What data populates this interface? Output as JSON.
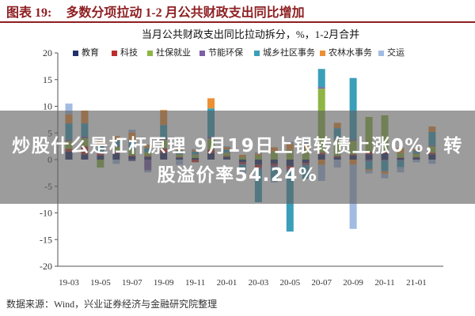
{
  "header": {
    "figure_label": "图表 19:",
    "title": "多数分项拉动 1-2 月公共财政支出同比增加",
    "accent_color": "#8E1F22"
  },
  "chart_data": {
    "type": "bar",
    "stacked": true,
    "title": "当月公共财政支出同比拉动拆分，%，1-2月合并",
    "categories": [
      "19-03",
      "",
      "19-05",
      "",
      "19-07",
      "",
      "19-09",
      "",
      "19-11",
      "",
      "20-01",
      "",
      "20-03",
      "",
      "20-05",
      "",
      "20-07",
      "",
      "20-09",
      "",
      "20-11",
      "",
      "21-01",
      ""
    ],
    "yticks": [
      20,
      15,
      10,
      5,
      0,
      -5,
      -10,
      -15,
      -20
    ],
    "ylim": [
      -20,
      20
    ],
    "grid": false,
    "legend": "top",
    "series": [
      {
        "name": "教育",
        "color": "#22306B",
        "values": [
          1.5,
          1.0,
          0.8,
          1.2,
          0.6,
          0.5,
          1.3,
          0.4,
          0.3,
          1.2,
          0.5,
          -0.5,
          -1.0,
          -0.8,
          -1.2,
          -0.6,
          1.0,
          0.5,
          0.8,
          1.0,
          1.2,
          0.3,
          0.4,
          1.0
        ]
      },
      {
        "name": "科技",
        "color": "#BE2E2C",
        "values": [
          0.5,
          1.5,
          0.3,
          0.4,
          0.2,
          0.2,
          0.8,
          0.1,
          -0.5,
          0.7,
          0.2,
          -0.3,
          -0.5,
          -0.3,
          -0.5,
          -0.2,
          0.3,
          0.2,
          0.2,
          0.5,
          0.3,
          0.1,
          0.1,
          0.3
        ]
      },
      {
        "name": "社保就业",
        "color": "#8FB545",
        "values": [
          1.5,
          1.5,
          -1.5,
          0.8,
          1.2,
          0.7,
          1.6,
          0.5,
          0.6,
          2.0,
          0.6,
          0.5,
          0.8,
          1.5,
          1.8,
          2.0,
          12.0,
          3.0,
          2.5,
          6.5,
          6.8,
          0.8,
          0.6,
          1.2
        ]
      },
      {
        "name": "节能环保",
        "color": "#7C5FA5",
        "values": [
          0.3,
          0.3,
          0.2,
          0.2,
          -0.3,
          -2.0,
          0.3,
          0.1,
          0.1,
          0.4,
          0.1,
          -0.2,
          -0.4,
          -0.3,
          -0.5,
          -0.3,
          0.3,
          0.2,
          0.3,
          -0.3,
          -0.2,
          -0.2,
          0.1,
          0.2
        ]
      },
      {
        "name": "城乡社区事务",
        "color": "#3A9FB8",
        "values": [
          3.0,
          2.5,
          1.5,
          1.0,
          1.6,
          0.8,
          2.5,
          0.6,
          0.5,
          5.3,
          0.5,
          -1.0,
          -6.1,
          -2.5,
          -11.3,
          -2.5,
          3.4,
          2.0,
          11.5,
          -1.5,
          -2.0,
          -1.2,
          0.5,
          2.5
        ]
      },
      {
        "name": "农林水事务",
        "color": "#EC8F35",
        "values": [
          1.7,
          2.4,
          1.0,
          0.8,
          1.5,
          0.6,
          2.8,
          0.4,
          0.3,
          1.9,
          0.4,
          0.4,
          0.3,
          0.8,
          1.2,
          1.0,
          -1.0,
          1.0,
          -1.0,
          -0.3,
          -0.5,
          1.0,
          0.3,
          1.0
        ]
      },
      {
        "name": "交运",
        "color": "#A2BBE2",
        "values": [
          2.0,
          0.0,
          0.3,
          -0.8,
          0.5,
          -0.4,
          0.0,
          -1.0,
          0.2,
          0.0,
          0.2,
          -0.6,
          0.3,
          -0.4,
          0.4,
          0.3,
          -3.0,
          -1.5,
          -12.0,
          -0.5,
          -0.8,
          -1.0,
          -0.5,
          -0.8
        ]
      }
    ]
  },
  "source": "数据来源：Wind，兴业证券经济与金融研究院整理",
  "overlay": {
    "line1": "炒股什么是杠杆原理 9月19日上银转债上涨0%，转",
    "line2": "股溢价率54.24%"
  }
}
